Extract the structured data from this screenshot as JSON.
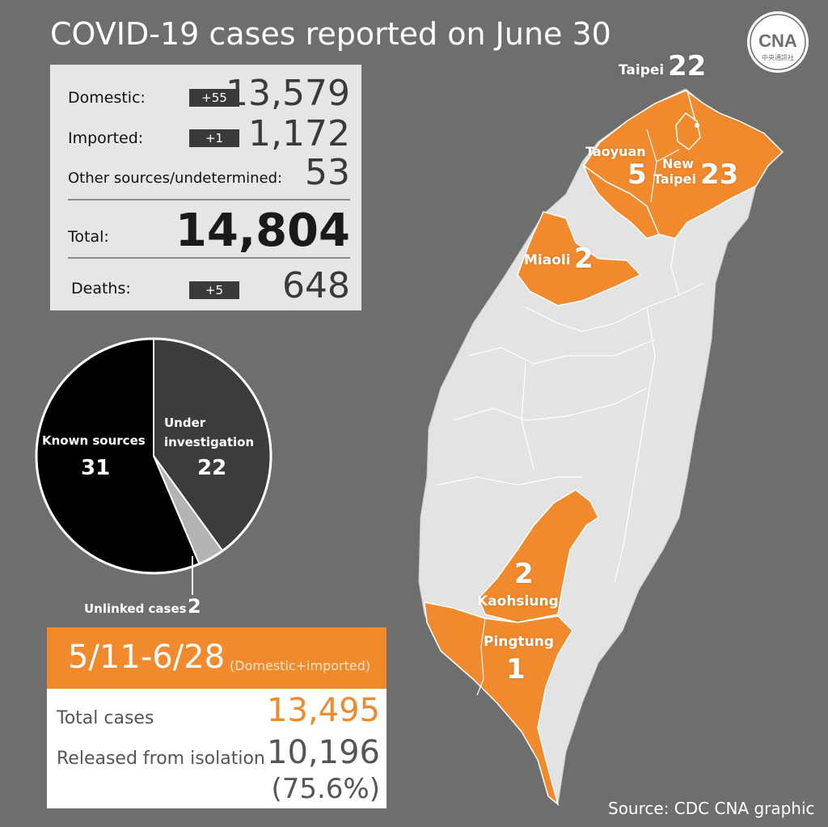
{
  "title": "COVID-19 cases reported on June 30",
  "logo": {
    "letters": "CNA",
    "subtitle": "中央通訊社"
  },
  "stats": {
    "domestic": {
      "label": "Domestic:",
      "delta": "+55",
      "value": "13,579"
    },
    "imported": {
      "label": "Imported:",
      "delta": "+1",
      "value": "1,172"
    },
    "other": {
      "label": "Other sources/undetermined:",
      "value": "53"
    },
    "total": {
      "label": "Total:",
      "value": "14,804"
    },
    "deaths": {
      "label": "Deaths:",
      "delta": "+5",
      "value": "648"
    }
  },
  "chart_data": {
    "type": "pie",
    "slices": [
      {
        "label": "Known sources",
        "value": 31,
        "color": "#000000"
      },
      {
        "label": "Under investigation",
        "value": 22,
        "color": "#3c3c3c"
      },
      {
        "label": "Unlinked cases",
        "value": 2,
        "color": "#b4b4b4"
      }
    ]
  },
  "pie_labels": {
    "known_label": "Known sources",
    "known_value": "31",
    "under_label_1": "Under",
    "under_label_2": "investigation",
    "under_value": "22",
    "unlinked_label": "Unlinked cases",
    "unlinked_value": "2"
  },
  "period_box": {
    "range": "5/11-6/28",
    "note": "(Domestic+imported)",
    "total_label": "Total cases",
    "total_value": "13,495",
    "released_label": "Released from isolation",
    "released_value": "10,196",
    "released_pct": "(75.6%)"
  },
  "map": {
    "highlight_color": "#f1892d",
    "taipei": {
      "name": "Taipei",
      "count": "22"
    },
    "new_taipei": {
      "name1": "New",
      "name2": "Taipei",
      "count": "23"
    },
    "taoyuan": {
      "name": "Taoyuan",
      "count": "5"
    },
    "miaoli": {
      "name": "Miaoli",
      "count": "2"
    },
    "kaohsiung": {
      "name": "Kaohsiung",
      "count": "2"
    },
    "pingtung": {
      "name": "Pingtung",
      "count": "1"
    }
  },
  "source": "Source: CDC    CNA graphic"
}
